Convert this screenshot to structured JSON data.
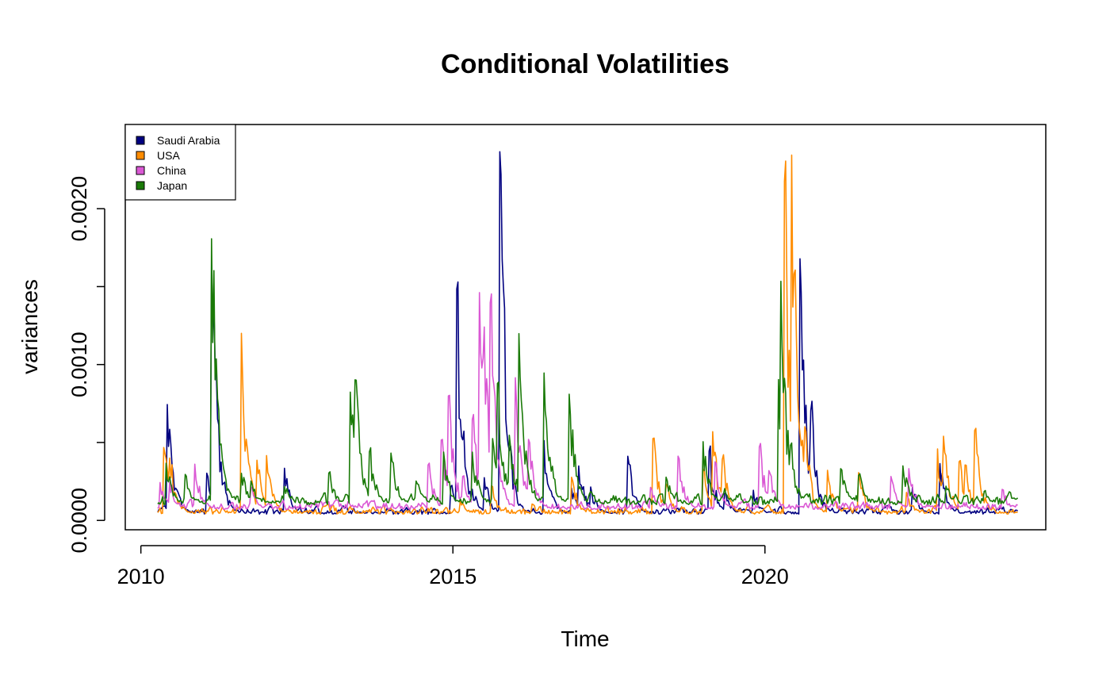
{
  "chart_data": {
    "type": "line",
    "title": "Conditional Volatilities",
    "xlabel": "Time",
    "ylabel": "variances",
    "xlim": [
      2009.75,
      2024.5
    ],
    "ylim": [
      -6e-05,
      0.00254
    ],
    "x_ticks": [
      2010,
      2015,
      2020
    ],
    "x_tick_labels": [
      "2010",
      "2015",
      "2020"
    ],
    "y_ticks": [
      0.0,
      0.0005,
      0.001,
      0.0015,
      0.002
    ],
    "y_tick_labels": [
      "0.0000",
      "",
      "0.0010",
      "",
      "0.0020"
    ],
    "grid": false,
    "legend_position": "top-left",
    "series": [
      {
        "name": "Saudi Arabia",
        "color": "#000080",
        "baseline": 4e-05,
        "noise": 2.5e-05,
        "spikes": [
          [
            2010.42,
            0.00077
          ],
          [
            2010.45,
            0.00066
          ],
          [
            2011.05,
            0.00032
          ],
          [
            2011.12,
            0.00187
          ],
          [
            2011.18,
            0.00078
          ],
          [
            2012.3,
            0.00034
          ],
          [
            2014.95,
            0.00025
          ],
          [
            2015.05,
            0.00168
          ],
          [
            2015.3,
            0.00022
          ],
          [
            2015.5,
            0.00028
          ],
          [
            2015.75,
            0.0024
          ],
          [
            2015.82,
            0.00062
          ],
          [
            2016.45,
            0.00057
          ],
          [
            2016.9,
            0.00021
          ],
          [
            2017.0,
            0.00041
          ],
          [
            2017.2,
            0.00023
          ],
          [
            2017.8,
            0.00042
          ],
          [
            2019.1,
            0.00047
          ],
          [
            2019.35,
            0.00018
          ],
          [
            2019.8,
            0.00022
          ],
          [
            2020.55,
            0.00191
          ],
          [
            2020.72,
            0.00082
          ],
          [
            2022.35,
            0.00024
          ],
          [
            2022.8,
            0.00038
          ]
        ]
      },
      {
        "name": "USA",
        "color": "#FF8C00",
        "baseline": 4e-05,
        "noise": 3e-05,
        "spikes": [
          [
            2010.35,
            0.00055
          ],
          [
            2010.45,
            0.00045
          ],
          [
            2011.6,
            0.00136
          ],
          [
            2011.7,
            0.00043
          ],
          [
            2011.85,
            0.00043
          ],
          [
            2012.0,
            0.00048
          ],
          [
            2015.1,
            0.00015
          ],
          [
            2015.6,
            0.00026
          ],
          [
            2016.25,
            0.00012
          ],
          [
            2016.9,
            0.00028
          ],
          [
            2018.2,
            0.00055
          ],
          [
            2018.4,
            0.00027
          ],
          [
            2019.0,
            0.00035
          ],
          [
            2019.15,
            0.00065
          ],
          [
            2019.3,
            0.00046
          ],
          [
            2020.3,
            0.0025
          ],
          [
            2020.42,
            0.00255
          ],
          [
            2020.48,
            0.0017
          ],
          [
            2020.62,
            0.00073
          ],
          [
            2021.0,
            0.00033
          ],
          [
            2021.5,
            0.00031
          ],
          [
            2022.25,
            0.00021
          ],
          [
            2022.75,
            0.00054
          ],
          [
            2022.85,
            0.00061
          ],
          [
            2023.1,
            0.00042
          ],
          [
            2023.2,
            0.00038
          ],
          [
            2023.35,
            0.00064
          ]
        ]
      },
      {
        "name": "China",
        "color": "#DA58D4",
        "baseline": 7e-05,
        "noise": 3e-05,
        "spikes": [
          [
            2010.3,
            0.00026
          ],
          [
            2010.45,
            0.00027
          ],
          [
            2010.85,
            0.00041
          ],
          [
            2011.75,
            0.00024
          ],
          [
            2013.3,
            0.00013
          ],
          [
            2014.6,
            0.00036
          ],
          [
            2014.8,
            0.00058
          ],
          [
            2014.92,
            0.00086
          ],
          [
            2015.15,
            0.0003
          ],
          [
            2015.3,
            0.00072
          ],
          [
            2015.42,
            0.00155
          ],
          [
            2015.5,
            0.00127
          ],
          [
            2015.58,
            0.00169
          ],
          [
            2015.72,
            0.00038
          ],
          [
            2016.0,
            0.00092
          ],
          [
            2016.2,
            0.00058
          ],
          [
            2018.15,
            0.00024
          ],
          [
            2018.6,
            0.00044
          ],
          [
            2019.2,
            0.00038
          ],
          [
            2019.9,
            0.00052
          ],
          [
            2020.05,
            0.00036
          ],
          [
            2022.0,
            0.00033
          ],
          [
            2022.3,
            0.00035
          ],
          [
            2023.8,
            0.0002
          ]
        ]
      },
      {
        "name": "Japan",
        "color": "#1A7A08",
        "baseline": 0.0001,
        "noise": 4e-05,
        "spikes": [
          [
            2010.4,
            0.00038
          ],
          [
            2010.7,
            0.00032
          ],
          [
            2011.12,
            0.00206
          ],
          [
            2011.2,
            0.00085
          ],
          [
            2011.6,
            0.00033
          ],
          [
            2011.75,
            0.00028
          ],
          [
            2012.3,
            0.00022
          ],
          [
            2013.0,
            0.00033
          ],
          [
            2013.35,
            0.00087
          ],
          [
            2013.42,
            0.00102
          ],
          [
            2013.65,
            0.00049
          ],
          [
            2014.0,
            0.00046
          ],
          [
            2014.4,
            0.00027
          ],
          [
            2014.85,
            0.00044
          ],
          [
            2015.3,
            0.00048
          ],
          [
            2015.62,
            0.00061
          ],
          [
            2015.7,
            0.001
          ],
          [
            2015.9,
            0.00057
          ],
          [
            2016.05,
            0.0013
          ],
          [
            2016.45,
            0.00105
          ],
          [
            2016.85,
            0.00092
          ],
          [
            2017.2,
            0.00017
          ],
          [
            2018.4,
            0.00031
          ],
          [
            2019.0,
            0.00055
          ],
          [
            2019.35,
            0.00021
          ],
          [
            2020.2,
            0.00107
          ],
          [
            2020.25,
            0.00162
          ],
          [
            2020.4,
            0.00052
          ],
          [
            2021.2,
            0.00037
          ],
          [
            2021.5,
            0.00029
          ],
          [
            2022.2,
            0.00038
          ],
          [
            2022.9,
            0.00022
          ],
          [
            2023.5,
            0.0002
          ],
          [
            2023.9,
            0.0002
          ]
        ]
      }
    ],
    "x_start": 2010.27,
    "x_end": 2024.05
  }
}
